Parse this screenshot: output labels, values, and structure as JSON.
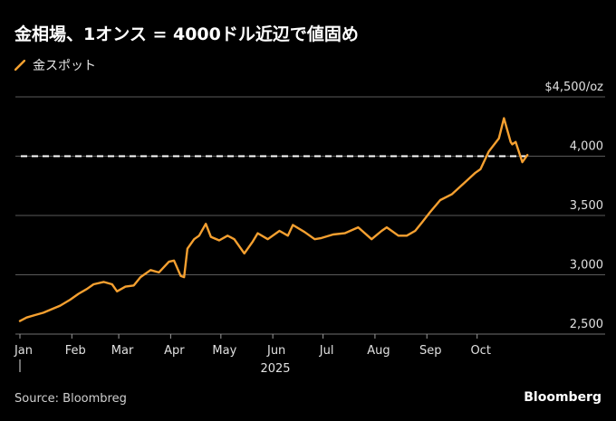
{
  "title": "金相場、1オンス = 4000ドル近辺で値固め",
  "legend": {
    "label": "金スポット",
    "color": "#f5a030"
  },
  "source": "Source: Bloombreg",
  "brand": "Bloomberg",
  "chart_data": {
    "type": "line",
    "title": "金相場、1オンス = 4000ドル近辺で値固め",
    "ylim": [
      2500,
      4500
    ],
    "y_ticks": [
      {
        "value": 4500,
        "label": "$4,500/oz"
      },
      {
        "value": 4000,
        "label": "4,000"
      },
      {
        "value": 3500,
        "label": "3,500"
      },
      {
        "value": 3000,
        "label": "3,000"
      },
      {
        "value": 2500,
        "label": "2,500"
      }
    ],
    "x_ticks": [
      "Jan",
      "Feb",
      "Mar",
      "Apr",
      "May",
      "Jun",
      "Jul",
      "Aug",
      "Sep",
      "Oct"
    ],
    "year_label": "2025",
    "reference_line": {
      "value": 4000,
      "style": "dashed",
      "color": "#ffffff"
    },
    "grid": true,
    "series": [
      {
        "name": "金スポット",
        "color": "#f5a030",
        "points": [
          [
            "2025-01-01",
            2610
          ],
          [
            "2025-01-05",
            2640
          ],
          [
            "2025-01-10",
            2660
          ],
          [
            "2025-01-15",
            2680
          ],
          [
            "2025-01-20",
            2710
          ],
          [
            "2025-01-25",
            2740
          ],
          [
            "2025-01-31",
            2790
          ],
          [
            "2025-02-05",
            2840
          ],
          [
            "2025-02-10",
            2880
          ],
          [
            "2025-02-14",
            2920
          ],
          [
            "2025-02-20",
            2940
          ],
          [
            "2025-02-25",
            2920
          ],
          [
            "2025-02-28",
            2860
          ],
          [
            "2025-03-05",
            2900
          ],
          [
            "2025-03-10",
            2910
          ],
          [
            "2025-03-14",
            2980
          ],
          [
            "2025-03-20",
            3040
          ],
          [
            "2025-03-25",
            3020
          ],
          [
            "2025-03-31",
            3110
          ],
          [
            "2025-04-03",
            3120
          ],
          [
            "2025-04-07",
            2990
          ],
          [
            "2025-04-09",
            2980
          ],
          [
            "2025-04-11",
            3220
          ],
          [
            "2025-04-15",
            3300
          ],
          [
            "2025-04-18",
            3330
          ],
          [
            "2025-04-22",
            3430
          ],
          [
            "2025-04-25",
            3320
          ],
          [
            "2025-04-30",
            3290
          ],
          [
            "2025-05-05",
            3330
          ],
          [
            "2025-05-09",
            3300
          ],
          [
            "2025-05-15",
            3180
          ],
          [
            "2025-05-20",
            3280
          ],
          [
            "2025-05-23",
            3350
          ],
          [
            "2025-05-29",
            3300
          ],
          [
            "2025-06-05",
            3370
          ],
          [
            "2025-06-10",
            3330
          ],
          [
            "2025-06-13",
            3420
          ],
          [
            "2025-06-20",
            3360
          ],
          [
            "2025-06-26",
            3300
          ],
          [
            "2025-06-30",
            3310
          ],
          [
            "2025-07-07",
            3340
          ],
          [
            "2025-07-14",
            3350
          ],
          [
            "2025-07-22",
            3400
          ],
          [
            "2025-07-30",
            3300
          ],
          [
            "2025-08-05",
            3370
          ],
          [
            "2025-08-08",
            3400
          ],
          [
            "2025-08-15",
            3330
          ],
          [
            "2025-08-20",
            3330
          ],
          [
            "2025-08-25",
            3370
          ],
          [
            "2025-08-29",
            3440
          ],
          [
            "2025-09-03",
            3530
          ],
          [
            "2025-09-09",
            3630
          ],
          [
            "2025-09-16",
            3680
          ],
          [
            "2025-09-23",
            3770
          ],
          [
            "2025-09-30",
            3860
          ],
          [
            "2025-10-03",
            3890
          ],
          [
            "2025-10-08",
            4040
          ],
          [
            "2025-10-14",
            4150
          ],
          [
            "2025-10-17",
            4320
          ],
          [
            "2025-10-21",
            4120
          ],
          [
            "2025-10-22",
            4100
          ],
          [
            "2025-10-24",
            4120
          ],
          [
            "2025-10-28",
            3950
          ],
          [
            "2025-10-31",
            4010
          ]
        ]
      }
    ]
  }
}
